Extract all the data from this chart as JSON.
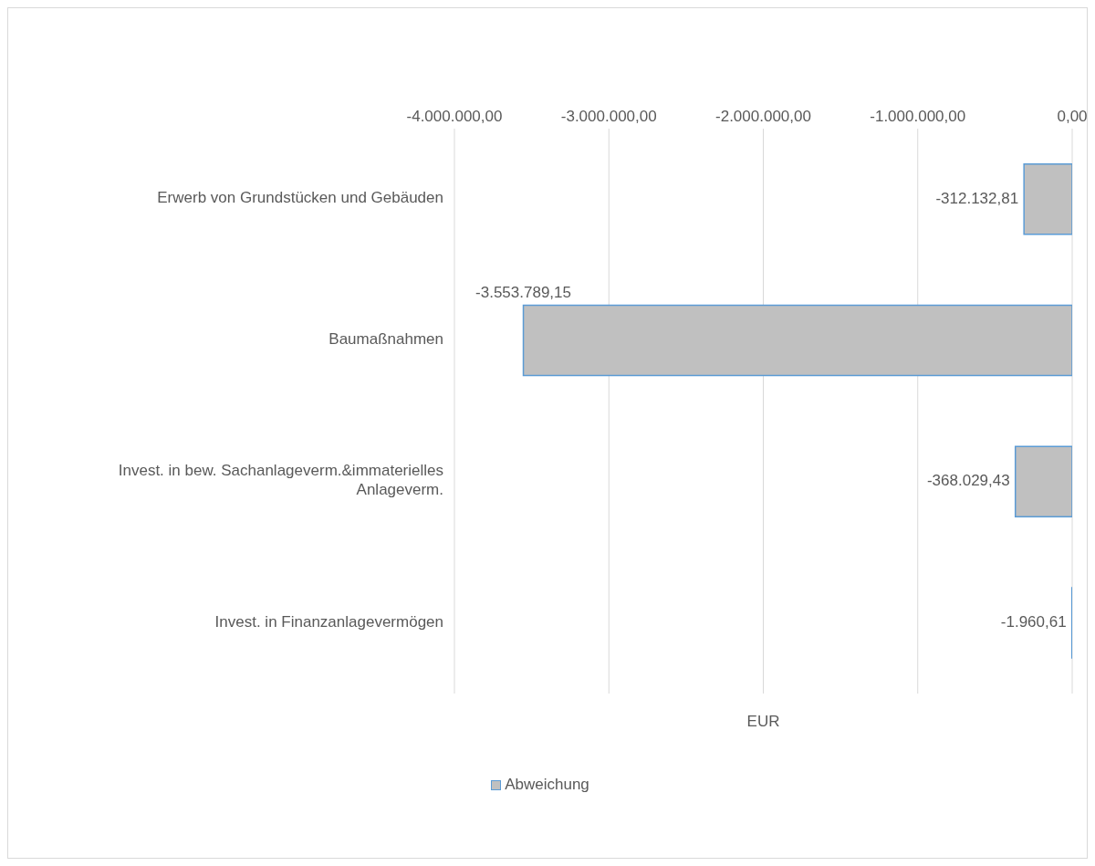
{
  "chart_data": {
    "type": "bar",
    "orientation": "horizontal",
    "xlabel": "EUR",
    "categories": [
      "Erwerb von Grundstücken und Gebäuden",
      "Baumaßnahmen",
      "Invest. in bew. Sachanlageverm.&immaterielles Anlageverm.",
      "Invest. in Finanzanlagevermögen"
    ],
    "series": [
      {
        "name": "Abweichung",
        "color": "#c0c0c0",
        "values": [
          -312132.81,
          -3553789.15,
          -368029.43,
          -1960.61
        ],
        "value_labels": [
          "-312.132,81",
          "-3.553.789,15",
          "-368.029,43",
          "-1.960,61"
        ]
      }
    ],
    "xlim": [
      -4000000,
      0
    ],
    "xticks": [
      {
        "value": -4000000,
        "label": "-4.000.000,00"
      },
      {
        "value": -3000000,
        "label": "-3.000.000,00"
      },
      {
        "value": -2000000,
        "label": "-2.000.000,00"
      },
      {
        "value": -1000000,
        "label": "-1.000.000,00"
      },
      {
        "value": 0,
        "label": "0,00"
      }
    ],
    "grid": "x",
    "legend": "bottom"
  }
}
